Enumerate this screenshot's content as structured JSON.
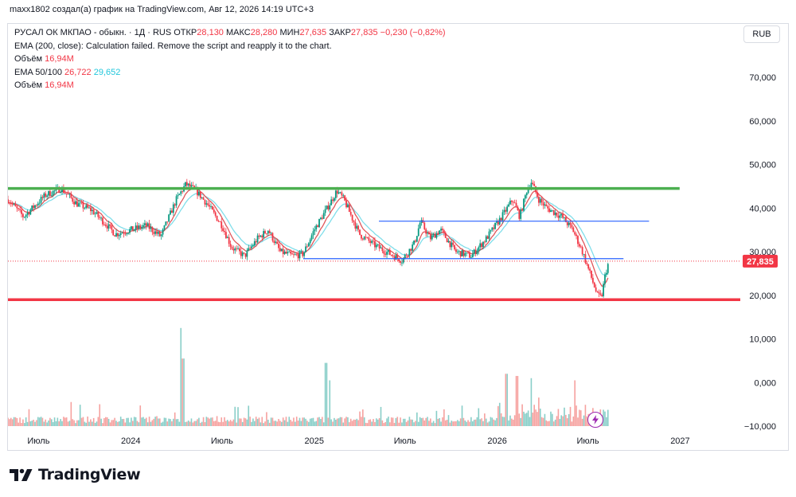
{
  "header": {
    "author_line": "maxx1802 создал(а) график на TradingView.com, Авг 12, 2026 14:19 UTC+3"
  },
  "legend": {
    "symbol": "РУСАЛ ОК МКПАО - обыкн. · 1Д · RUS",
    "open_label": "ОТКР",
    "open_value": "28,130",
    "high_label": "МАКС",
    "high_value": "28,280",
    "low_label": "МИН",
    "low_value": "27,635",
    "close_label": "ЗАКР",
    "close_value": "27,835",
    "change": "−0,230 (−0,82%)",
    "ema200": "EMA (200, close): Calculation failed. Remove the script and reapply it to the chart.",
    "volume_label_1": "Объём",
    "volume_value_1": "16,94M",
    "ema_label": "EMA 50/100",
    "ema50_value": "26,722",
    "ema100_value": "29,652",
    "volume_label_2": "Объём",
    "volume_value_2": "16,94M"
  },
  "currency_button": "RUB",
  "last_price_tag": "27,835",
  "brand": {
    "name": "TradingView",
    "logo_icon": "tradingview-logo-icon"
  },
  "flash_icon": "lightning-icon",
  "colors": {
    "support_line": "#f23645",
    "resistance_line": "#4caf50",
    "ema50": "#e0565b",
    "ema100": "#80deea",
    "candle_up": "#089981",
    "candle_down": "#f23645",
    "range_line": "#2962ff",
    "volume_up": "#26a69a",
    "volume_down": "#ef5350"
  },
  "chart_data": {
    "type": "candlestick",
    "y_ticks": [
      "70,000",
      "60,000",
      "50,000",
      "40,000",
      "30,000",
      "20,000",
      "10,000",
      "0,000",
      "−10,000"
    ],
    "y_tick_values": [
      70,
      60,
      50,
      40,
      30,
      20,
      10,
      0,
      -10
    ],
    "x_ticks": [
      "Июль",
      "2024",
      "Июль",
      "2025",
      "Июль",
      "2026",
      "Июль",
      "2027"
    ],
    "x_tick_dates": [
      "2023-07-01",
      "2024-01-01",
      "2024-07-01",
      "2025-01-01",
      "2025-07-01",
      "2026-01-01",
      "2026-07-01",
      "2027-01-01"
    ],
    "ylim": [
      -10,
      70
    ],
    "x_range": [
      "2023-05-01",
      "2027-05-01"
    ],
    "horizontal_levels": [
      {
        "name": "resistance",
        "value": 44.5,
        "from": "2023-05-01",
        "to": "2026-12-31",
        "color": "#4caf50"
      },
      {
        "name": "support",
        "value": 19.0,
        "from": "2023-05-01",
        "to": "2027-05-01",
        "color": "#f23645"
      },
      {
        "name": "range-top",
        "value": 37.0,
        "from": "2025-05-10",
        "to": "2026-10-31",
        "color": "#2962ff"
      },
      {
        "name": "range-bottom",
        "value": 28.4,
        "from": "2024-12-10",
        "to": "2026-09-10",
        "color": "#2962ff"
      }
    ],
    "price_path": [
      [
        "2023-05-01",
        42.0
      ],
      [
        "2023-06-01",
        38.0
      ],
      [
        "2023-07-15",
        43.0
      ],
      [
        "2023-08-15",
        44.5
      ],
      [
        "2023-09-15",
        41.0
      ],
      [
        "2023-10-15",
        39.5
      ],
      [
        "2023-11-15",
        36.0
      ],
      [
        "2023-12-01",
        34.0
      ],
      [
        "2024-01-01",
        35.0
      ],
      [
        "2024-02-01",
        36.0
      ],
      [
        "2024-03-01",
        33.5
      ],
      [
        "2024-04-01",
        42.0
      ],
      [
        "2024-04-20",
        45.5
      ],
      [
        "2024-05-10",
        44.0
      ],
      [
        "2024-06-01",
        41.0
      ],
      [
        "2024-07-01",
        36.0
      ],
      [
        "2024-07-20",
        31.0
      ],
      [
        "2024-08-15",
        29.0
      ],
      [
        "2024-09-10",
        33.0
      ],
      [
        "2024-10-01",
        35.0
      ],
      [
        "2024-10-25",
        30.0
      ],
      [
        "2024-11-20",
        29.0
      ],
      [
        "2024-12-10",
        29.5
      ],
      [
        "2025-01-01",
        35.0
      ],
      [
        "2025-02-01",
        41.0
      ],
      [
        "2025-02-15",
        44.0
      ],
      [
        "2025-03-01",
        42.0
      ],
      [
        "2025-04-01",
        34.0
      ],
      [
        "2025-05-01",
        31.5
      ],
      [
        "2025-06-01",
        29.5
      ],
      [
        "2025-06-25",
        28.0
      ],
      [
        "2025-07-20",
        32.0
      ],
      [
        "2025-08-01",
        37.0
      ],
      [
        "2025-08-20",
        33.0
      ],
      [
        "2025-09-10",
        35.0
      ],
      [
        "2025-10-10",
        30.0
      ],
      [
        "2025-11-10",
        29.0
      ],
      [
        "2025-12-10",
        33.0
      ],
      [
        "2026-01-10",
        38.0
      ],
      [
        "2026-02-01",
        42.0
      ],
      [
        "2026-02-15",
        38.0
      ],
      [
        "2026-03-01",
        44.0
      ],
      [
        "2026-03-10",
        46.0
      ],
      [
        "2026-03-25",
        42.0
      ],
      [
        "2026-04-10",
        40.0
      ],
      [
        "2026-05-10",
        38.0
      ],
      [
        "2026-06-01",
        35.0
      ],
      [
        "2026-06-20",
        30.0
      ],
      [
        "2026-07-05",
        25.0
      ],
      [
        "2026-07-20",
        20.0
      ],
      [
        "2026-07-28",
        19.5
      ],
      [
        "2026-08-05",
        25.0
      ],
      [
        "2026-08-12",
        27.835
      ]
    ],
    "ema_series": [
      {
        "name": "EMA 50",
        "color": "#e0565b",
        "last": 26.722
      },
      {
        "name": "EMA 100",
        "color": "#80deea",
        "last": 29.652
      }
    ],
    "volume_spikes": [
      [
        "2024-04-10",
        12.5
      ],
      [
        "2024-04-15",
        5.5
      ],
      [
        "2025-01-25",
        4.5
      ],
      [
        "2025-02-01",
        0.5
      ],
      [
        "2026-01-20",
        2.0
      ],
      [
        "2026-02-10",
        1.5
      ],
      [
        "2026-03-10",
        1.0
      ],
      [
        "2026-06-05",
        0.5
      ]
    ]
  }
}
